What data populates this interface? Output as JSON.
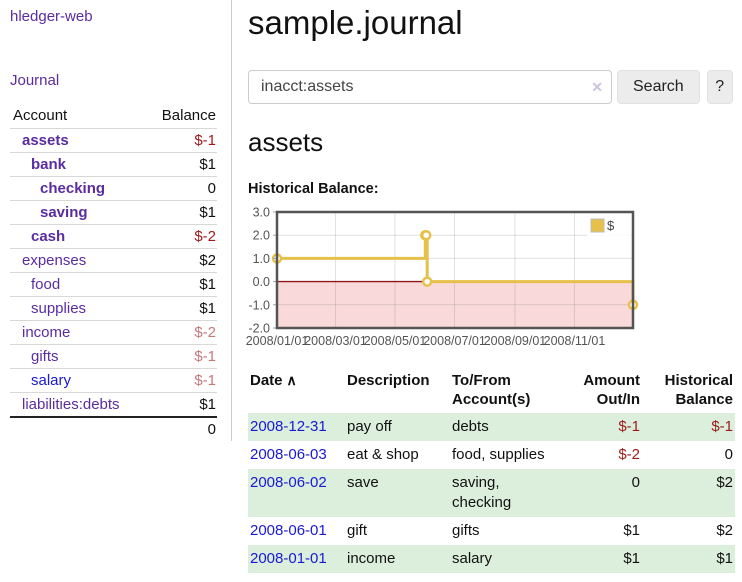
{
  "app": {
    "title": "hledger-web",
    "nav_journal": "Journal"
  },
  "sidebar": {
    "header": {
      "account": "Account",
      "balance": "Balance"
    },
    "accounts": [
      {
        "label": "assets",
        "level": 1,
        "bold": true,
        "balance": "$-1",
        "balance_style": "neg-dark",
        "link_style": "purple"
      },
      {
        "label": "bank",
        "level": 2,
        "bold": true,
        "balance": "$1",
        "balance_style": "",
        "link_style": "purple"
      },
      {
        "label": "checking",
        "level": 3,
        "bold": true,
        "balance": "0",
        "balance_style": "",
        "link_style": "purple"
      },
      {
        "label": "saving",
        "level": 3,
        "bold": true,
        "balance": "$1",
        "balance_style": "",
        "link_style": "purple"
      },
      {
        "label": "cash",
        "level": 2,
        "bold": true,
        "balance": "$-2",
        "balance_style": "neg-dark",
        "link_style": "purple"
      },
      {
        "label": "expenses",
        "level": 1,
        "bold": false,
        "balance": "$2",
        "balance_style": "",
        "link_style": "purple"
      },
      {
        "label": "food",
        "level": 2,
        "bold": false,
        "balance": "$1",
        "balance_style": "",
        "link_style": "purple"
      },
      {
        "label": "supplies",
        "level": 2,
        "bold": false,
        "balance": "$1",
        "balance_style": "",
        "link_style": "purple"
      },
      {
        "label": "income",
        "level": 1,
        "bold": false,
        "balance": "$-2",
        "balance_style": "neg-light",
        "link_style": "purple"
      },
      {
        "label": "gifts",
        "level": 2,
        "bold": false,
        "balance": "$-1",
        "balance_style": "neg-light",
        "link_style": "purple"
      },
      {
        "label": "salary",
        "level": 2,
        "bold": false,
        "balance": "$-1",
        "balance_style": "neg-light",
        "link_style": "blue"
      },
      {
        "label": "liabilities:debts",
        "level": 1,
        "bold": false,
        "balance": "$1",
        "balance_style": "",
        "link_style": "purple"
      }
    ],
    "total": "0"
  },
  "main": {
    "title": "sample.journal",
    "search": {
      "value": "inacct:assets",
      "clear_icon": "✕",
      "button_label": "Search",
      "help_label": "?"
    },
    "account_heading": "assets",
    "chart_label": "Historical Balance:"
  },
  "chart_data": {
    "type": "line",
    "title": "Historical Balance (assets)",
    "step": true,
    "series": [
      {
        "name": "$",
        "points": [
          [
            "2008-01-01",
            1
          ],
          [
            "2008-06-01",
            2
          ],
          [
            "2008-06-02",
            2
          ],
          [
            "2008-06-03",
            0
          ],
          [
            "2008-12-31",
            -1
          ]
        ]
      }
    ],
    "x_ticks": [
      "2008/01/01",
      "2008/03/01",
      "2008/05/01",
      "2008/07/01",
      "2008/09/01",
      "2008/11/01"
    ],
    "y_ticks": [
      3.0,
      2.0,
      1.0,
      0.0,
      -1.0,
      -2.0
    ],
    "ylim": [
      -2,
      3
    ],
    "x_range_days": 365,
    "legend": {
      "label": "$",
      "position": "top-right"
    },
    "grid": true,
    "colors": {
      "line": "#e6c14a",
      "marker_fill": "#ffffff",
      "negative_region": "#f9d9d9",
      "zero_line": "#8f1717",
      "border": "#545454",
      "grid_line": "#787878",
      "tick_text": "#545454"
    }
  },
  "register": {
    "columns": [
      {
        "label": "Date",
        "sorted": true
      },
      {
        "label": "Description"
      },
      {
        "label": "To/From Account(s)"
      },
      {
        "label": "Amount Out/In",
        "align": "right"
      },
      {
        "label": "Historical Balance",
        "align": "right"
      }
    ],
    "sort_icon": "∧",
    "rows": [
      {
        "date": "2008-12-31",
        "description": "pay off",
        "accounts": "debts",
        "amount": "$-1",
        "amount_style": "neg-dark",
        "balance": "$-1",
        "balance_style": "neg-dark",
        "green": true
      },
      {
        "date": "2008-06-03",
        "description": "eat & shop",
        "accounts": "food, supplies",
        "amount": "$-2",
        "amount_style": "neg-dark",
        "balance": "0",
        "balance_style": "",
        "green": false
      },
      {
        "date": "2008-06-02",
        "description": "save",
        "accounts": "saving, checking",
        "amount": "0",
        "amount_style": "",
        "balance": "$2",
        "balance_style": "",
        "green": true
      },
      {
        "date": "2008-06-01",
        "description": "gift",
        "accounts": "gifts",
        "amount": "$1",
        "amount_style": "",
        "balance": "$2",
        "balance_style": "",
        "green": false
      },
      {
        "date": "2008-01-01",
        "description": "income",
        "accounts": "salary",
        "amount": "$1",
        "amount_style": "",
        "balance": "$1",
        "balance_style": "",
        "green": true
      }
    ]
  }
}
